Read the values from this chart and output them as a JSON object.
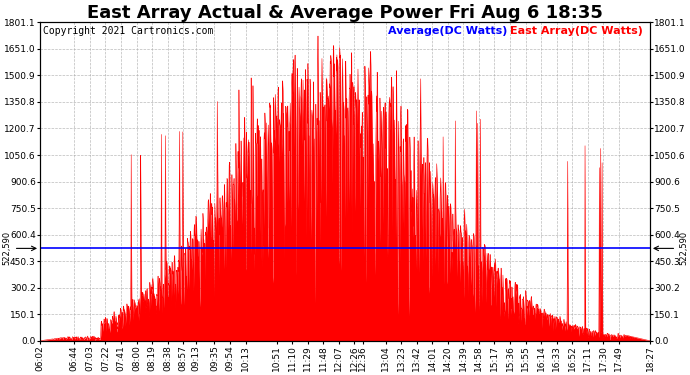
{
  "title": "East Array Actual & Average Power Fri Aug 6 18:35",
  "copyright": "Copyright 2021 Cartronics.com",
  "legend_avg": "Average(DC Watts)",
  "legend_east": "East Array(DC Watts)",
  "avg_value": 522.59,
  "ymax": 1801.1,
  "ymin": 0.0,
  "yticks": [
    0.0,
    150.1,
    300.2,
    450.3,
    600.4,
    750.5,
    900.6,
    1050.6,
    1200.7,
    1350.8,
    1500.9,
    1651.0,
    1801.1
  ],
  "color_avg": "blue",
  "color_east": "red",
  "annotation_value": "522,590",
  "xtick_labels": [
    "06:02",
    "06:44",
    "07:03",
    "07:22",
    "07:41",
    "08:00",
    "08:19",
    "08:38",
    "08:57",
    "09:13",
    "09:35",
    "09:54",
    "10:13",
    "10:51",
    "11:10",
    "11:29",
    "11:48",
    "12:07",
    "12:26",
    "12:36",
    "13:04",
    "13:23",
    "13:42",
    "14:01",
    "14:20",
    "14:39",
    "14:58",
    "15:17",
    "15:36",
    "15:55",
    "16:14",
    "16:33",
    "16:52",
    "17:11",
    "17:30",
    "17:49",
    "18:27"
  ],
  "title_fontsize": 13,
  "label_fontsize": 6.5,
  "copyright_fontsize": 7,
  "legend_fontsize": 8
}
